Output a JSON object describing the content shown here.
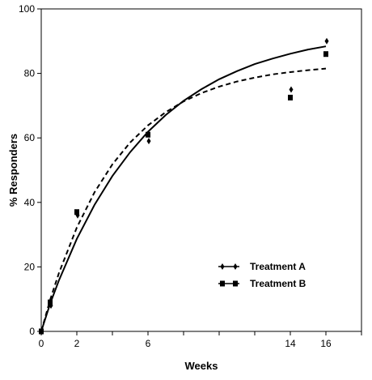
{
  "chart_data": {
    "type": "scatter",
    "xlabel": "Weeks",
    "ylabel": "% Responders",
    "xlim": [
      0,
      18
    ],
    "ylim": [
      0,
      100
    ],
    "x_ticks": [
      0,
      2,
      4,
      6,
      8,
      10,
      12,
      14,
      16,
      18
    ],
    "x_tick_labels": [
      "0",
      "2",
      "",
      "6",
      "",
      "",
      "",
      "14",
      "16",
      ""
    ],
    "y_ticks": [
      0,
      20,
      40,
      60,
      80,
      100
    ],
    "y_tick_labels": [
      "0",
      "20",
      "40",
      "60",
      "80",
      "100"
    ],
    "grid": false,
    "legend_position": "bottom-right",
    "series": [
      {
        "name": "Treatment A",
        "marker": "diamond",
        "points": [
          [
            0,
            0
          ],
          [
            0.5,
            8
          ],
          [
            2,
            36
          ],
          [
            6,
            59
          ],
          [
            14,
            75
          ],
          [
            16,
            90
          ]
        ],
        "fit_line": "solid",
        "fit_curve": [
          [
            0,
            0
          ],
          [
            0.5,
            8.6
          ],
          [
            1,
            15.9
          ],
          [
            2,
            28.7
          ],
          [
            3,
            39.3
          ],
          [
            4,
            48.2
          ],
          [
            5,
            55.6
          ],
          [
            6,
            61.9
          ],
          [
            7,
            67.1
          ],
          [
            8,
            71.5
          ],
          [
            9,
            75.1
          ],
          [
            10,
            78.2
          ],
          [
            11,
            80.7
          ],
          [
            12,
            82.9
          ],
          [
            13,
            84.6
          ],
          [
            14,
            86.1
          ],
          [
            15,
            87.4
          ],
          [
            16,
            88.4
          ]
        ]
      },
      {
        "name": "Treatment B",
        "marker": "square",
        "points": [
          [
            0,
            0
          ],
          [
            0.5,
            9
          ],
          [
            2,
            37
          ],
          [
            6,
            61
          ],
          [
            14,
            72.5
          ],
          [
            16,
            86
          ]
        ],
        "fit_line": "dashed",
        "fit_curve": [
          [
            0,
            0
          ],
          [
            0.5,
            9.8
          ],
          [
            1,
            18.2
          ],
          [
            2,
            32.2
          ],
          [
            3,
            43.2
          ],
          [
            4,
            51.8
          ],
          [
            5,
            58.6
          ],
          [
            6,
            63.9
          ],
          [
            7,
            68
          ],
          [
            8,
            71.3
          ],
          [
            9,
            73.9
          ],
          [
            10,
            75.9
          ],
          [
            11,
            77.5
          ],
          [
            12,
            78.7
          ],
          [
            13,
            79.7
          ],
          [
            14,
            80.4
          ],
          [
            15,
            81
          ],
          [
            16,
            81.5
          ]
        ]
      }
    ]
  }
}
